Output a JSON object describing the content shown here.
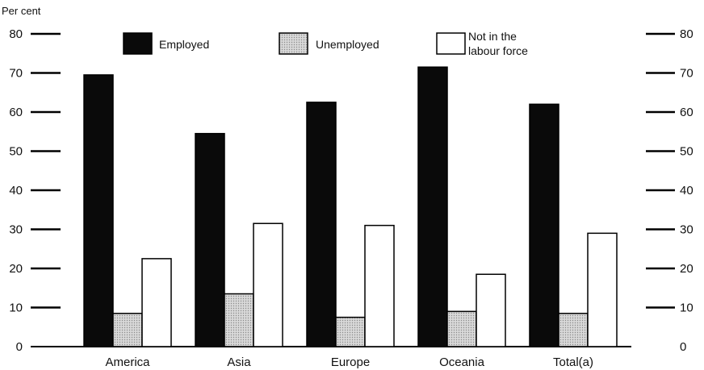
{
  "chart_data": {
    "type": "bar",
    "title": "",
    "xlabel": "",
    "ylabel": "Per cent",
    "ylim": [
      0,
      80
    ],
    "yticks": [
      "0",
      "10",
      "20",
      "30",
      "40",
      "50",
      "60",
      "70",
      "80"
    ],
    "categories": [
      "America",
      "Asia",
      "Europe",
      "Oceania",
      "Total(a)"
    ],
    "series": [
      {
        "name": "Employed",
        "values": [
          69.5,
          54.5,
          62.5,
          71.5,
          62
        ],
        "color": "#0a0a0a"
      },
      {
        "name": "Unemployed",
        "values": [
          8.5,
          13.5,
          7.5,
          9,
          8.5
        ],
        "color": "#cfcfcf"
      },
      {
        "name": "Not in the labour force",
        "name_lines": [
          "Not in the",
          "labour force"
        ],
        "values": [
          22.5,
          31.5,
          31,
          18.5,
          29
        ],
        "color": "#ffffff"
      }
    ],
    "legend": "top",
    "grid": false,
    "axis_both_sides": true
  }
}
